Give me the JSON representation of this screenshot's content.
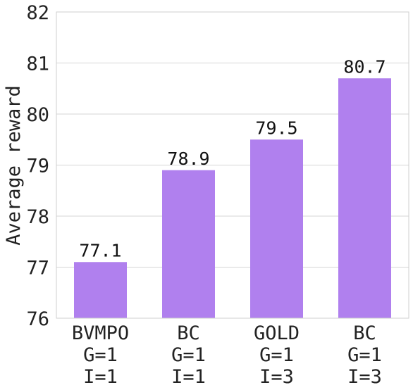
{
  "chart_data": {
    "type": "bar",
    "title": "",
    "xlabel": "",
    "ylabel": "Average reward",
    "ylim": [
      76,
      82
    ],
    "yticks": [
      76,
      77,
      78,
      79,
      80,
      81,
      82
    ],
    "grid": "horizontal",
    "bar_color": "#b080ee",
    "categories": [
      [
        "BVMPO",
        "G=1",
        "I=1"
      ],
      [
        "BC",
        "G=1",
        "I=1"
      ],
      [
        "GOLD",
        "G=1",
        "I=3"
      ],
      [
        "BC",
        "G=1",
        "I=3"
      ]
    ],
    "values": [
      77.1,
      78.9,
      79.5,
      80.7
    ],
    "data_labels": [
      "77.1",
      "78.9",
      "79.5",
      "80.7"
    ]
  }
}
